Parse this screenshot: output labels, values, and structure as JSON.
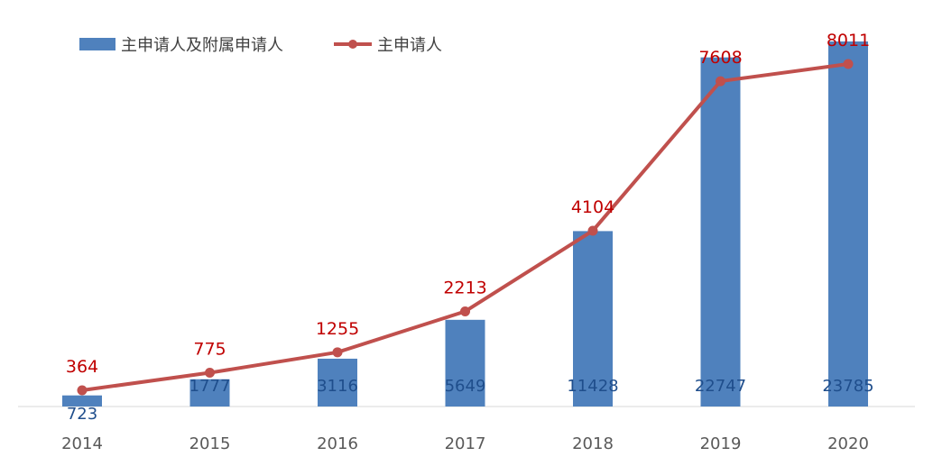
{
  "chart_data": {
    "type": "bar+line",
    "categories": [
      "2014",
      "2015",
      "2016",
      "2017",
      "2018",
      "2019",
      "2020"
    ],
    "series": [
      {
        "name": "主申请人及附属申请人",
        "type": "bar",
        "values": [
          723,
          1777,
          3116,
          5649,
          11428,
          22747,
          23785
        ],
        "color": "#4f81bd"
      },
      {
        "name": "主申请人",
        "type": "line",
        "values": [
          364,
          775,
          1255,
          2213,
          4104,
          7608,
          8011
        ],
        "color": "#c0504d"
      }
    ],
    "bar_axis_max": 23785,
    "line_axis_max": 8011,
    "legend_position": "top-left",
    "grid": false,
    "data_labels": true
  }
}
